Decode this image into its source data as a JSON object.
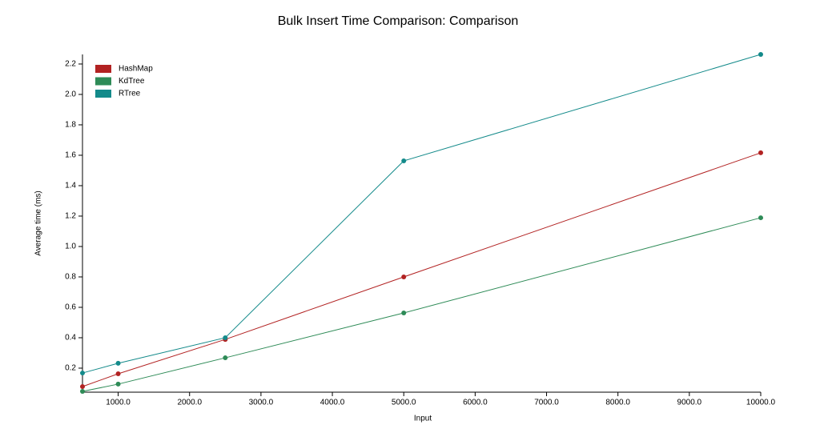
{
  "chart_data": {
    "type": "line",
    "title": "Bulk Insert Time Comparison: Comparison",
    "x_label": "Input",
    "y_label": "Average time (ms)",
    "x": [
      500,
      1000,
      2500,
      5000,
      10000
    ],
    "series": [
      {
        "name": "HashMap",
        "color": "#b22222",
        "values": [
          0.079,
          0.163,
          0.389,
          0.8,
          1.616
        ]
      },
      {
        "name": "KdTree",
        "color": "#2e8b57",
        "values": [
          0.047,
          0.095,
          0.268,
          0.563,
          1.189
        ]
      },
      {
        "name": "RTree",
        "color": "#138a8a",
        "values": [
          0.168,
          0.232,
          0.4,
          1.563,
          2.263
        ]
      }
    ],
    "xlim": [
      500,
      10000
    ],
    "xticks": [
      {
        "value": 1000,
        "label": "1000.0"
      },
      {
        "value": 2000,
        "label": "2000.0"
      },
      {
        "value": 3000,
        "label": "3000.0"
      },
      {
        "value": 4000,
        "label": "4000.0"
      },
      {
        "value": 5000,
        "label": "5000.0"
      },
      {
        "value": 6000,
        "label": "6000.0"
      },
      {
        "value": 7000,
        "label": "7000.0"
      },
      {
        "value": 8000,
        "label": "8000.0"
      },
      {
        "value": 9000,
        "label": "9000.0"
      },
      {
        "value": 10000,
        "label": "10000.0"
      }
    ],
    "ylim": [
      0.042,
      2.263
    ],
    "yticks": [
      0.2,
      0.4,
      0.6,
      0.8,
      {
        "value": 1,
        "label": "1.0"
      },
      1.2,
      1.4,
      1.6,
      1.8,
      {
        "value": 2,
        "label": "2.0"
      },
      2.2
    ],
    "legend": "top-left"
  }
}
